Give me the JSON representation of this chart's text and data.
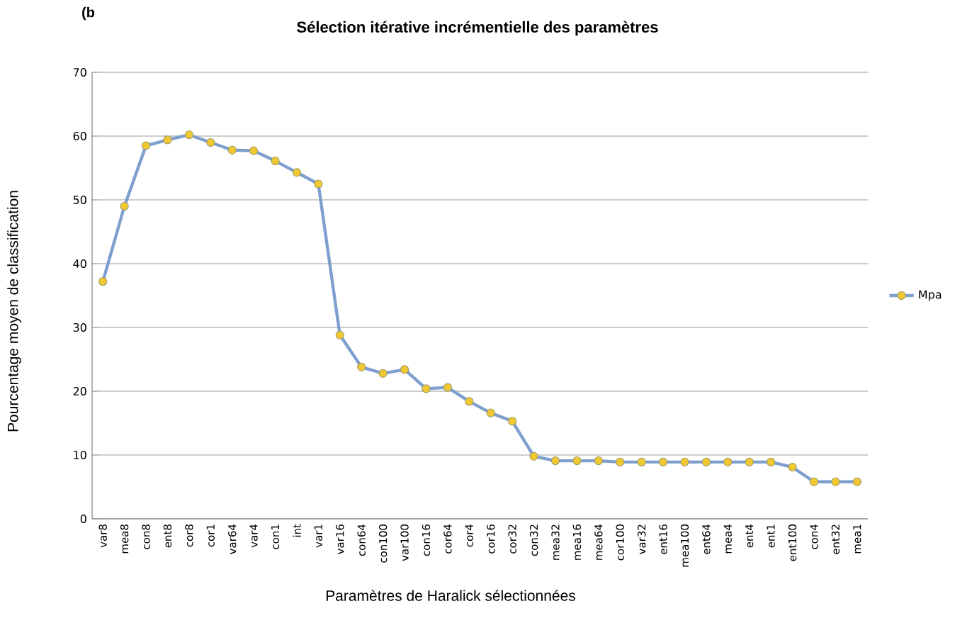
{
  "chart_data": {
    "type": "line",
    "title": "Sélection itérative incrémentielle des paramètres",
    "xlabel": "Paramètres de Haralick sélectionnées",
    "ylabel": "Pourcentage moyen de classification",
    "annotations": [
      "(b"
    ],
    "categories": [
      "var8",
      "mea8",
      "con8",
      "ent8",
      "cor8",
      "cor1",
      "var64",
      "var4",
      "con1",
      "int",
      "var1",
      "var16",
      "con64",
      "con100",
      "var100",
      "con16",
      "cor64",
      "cor4",
      "cor16",
      "cor32",
      "con32",
      "mea32",
      "mea16",
      "mea64",
      "cor100",
      "var32",
      "ent16",
      "mea100",
      "ent64",
      "mea4",
      "ent4",
      "ent1",
      "ent100",
      "con4",
      "ent32",
      "mea1"
    ],
    "series": [
      {
        "name": "Mpa",
        "color": "#7f9fcf",
        "values": [
          37.2,
          49.0,
          58.5,
          59.4,
          60.2,
          59.0,
          57.8,
          57.7,
          56.1,
          54.3,
          52.5,
          28.8,
          23.8,
          22.8,
          23.4,
          20.4,
          20.6,
          18.4,
          16.6,
          15.3,
          9.8,
          9.1,
          9.1,
          9.1,
          8.9,
          8.9,
          8.9,
          8.9,
          8.9,
          8.9,
          8.9,
          8.9,
          8.1,
          5.8,
          5.8,
          5.8
        ]
      }
    ],
    "ylim": [
      0,
      70
    ],
    "yticks": [
      0,
      10,
      20,
      30,
      40,
      50,
      60,
      70
    ],
    "grid": "y",
    "legend": "right",
    "marker": "circle",
    "line_style": "solid"
  }
}
